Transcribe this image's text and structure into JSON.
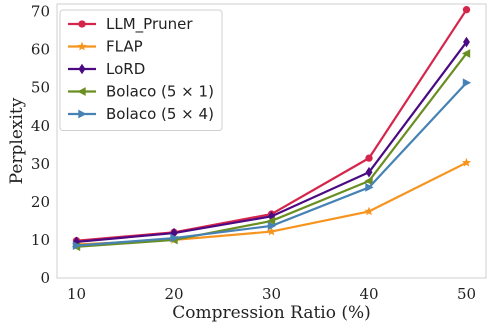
{
  "chart_data": {
    "type": "line",
    "x": [
      10,
      20,
      30,
      40,
      50
    ],
    "xlabel": "Compression Ratio (%)",
    "ylabel": "Perplexity",
    "xlim": [
      8,
      52
    ],
    "ylim": [
      0,
      72
    ],
    "xticks": [
      "10",
      "20",
      "30",
      "40",
      "50"
    ],
    "yticks": [
      "0",
      "10",
      "20",
      "30",
      "40",
      "50",
      "60",
      "70"
    ],
    "grid": true,
    "legend": "top-left",
    "series": [
      {
        "name": "LLM_Pruner",
        "color": "#d6254b",
        "marker": "circle",
        "values": [
          9.8,
          12.0,
          16.8,
          31.5,
          70.5
        ]
      },
      {
        "name": "FLAP",
        "color": "#f7941d",
        "marker": "star",
        "values": [
          8.8,
          10.0,
          12.2,
          17.5,
          30.3
        ]
      },
      {
        "name": "LoRD",
        "color": "#4b0a82",
        "marker": "diamond",
        "values": [
          9.5,
          11.8,
          16.2,
          27.8,
          62.0
        ]
      },
      {
        "name": "Bolaco (5 × 1)",
        "color": "#6b8e23",
        "marker": "triangle-left",
        "values": [
          8.2,
          10.0,
          15.0,
          25.5,
          59.0
        ]
      },
      {
        "name": "Bolaco (5 × 4)",
        "color": "#4682b4",
        "marker": "triangle-right",
        "values": [
          8.5,
          10.5,
          13.7,
          23.8,
          51.3
        ]
      }
    ]
  }
}
